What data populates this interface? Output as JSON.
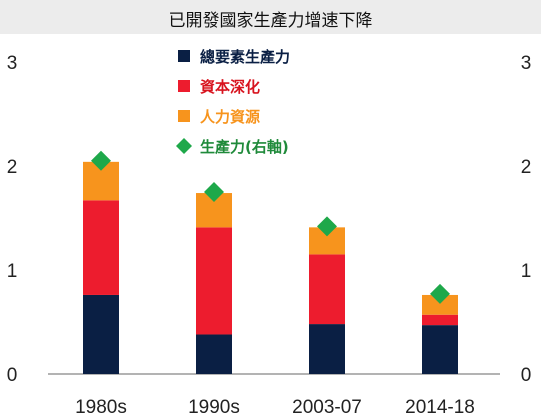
{
  "chart_data": {
    "type": "bar",
    "stacked": true,
    "title": "已開發國家生產力增速下降",
    "categories": [
      "1980s",
      "1990s",
      "2003-07",
      "2014-18"
    ],
    "series": [
      {
        "name": "總要素生產力",
        "kind": "bar",
        "color": "#0a1f44",
        "values": [
          0.76,
          0.38,
          0.48,
          0.47
        ]
      },
      {
        "name": "資本深化",
        "kind": "bar",
        "color": "#ed1c2e",
        "values": [
          0.91,
          1.03,
          0.67,
          0.1
        ]
      },
      {
        "name": "人力資源",
        "kind": "bar",
        "color": "#f7941d",
        "values": [
          0.37,
          0.33,
          0.26,
          0.19
        ]
      },
      {
        "name": "生產力(右軸)",
        "kind": "marker",
        "axis": "right",
        "color": "#1ea84a",
        "values": [
          2.05,
          1.75,
          1.42,
          0.77
        ]
      }
    ],
    "y_left": {
      "range": [
        0,
        3
      ],
      "ticks": [
        "0",
        "1",
        "2",
        "3"
      ]
    },
    "y_right": {
      "range": [
        0,
        3
      ],
      "ticks": [
        "0",
        "1",
        "2",
        "3"
      ]
    },
    "grid": false,
    "legend": "top-center"
  }
}
